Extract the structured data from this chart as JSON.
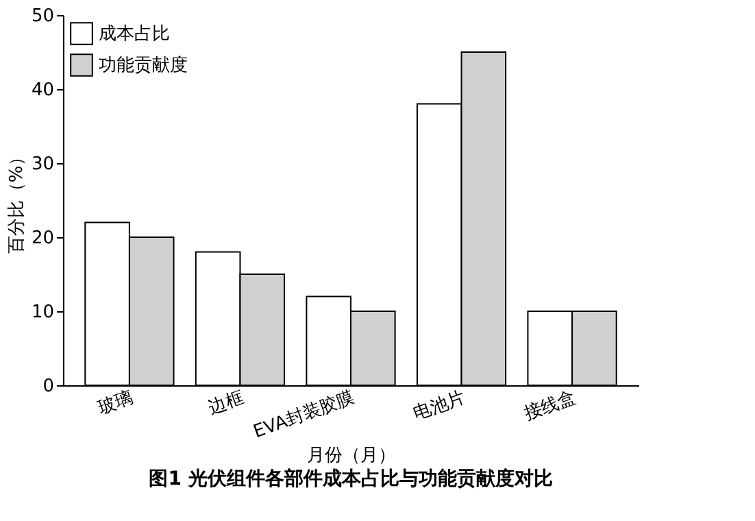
{
  "chart_data": {
    "type": "bar",
    "title": "图1  光伏组件各部件成本占比与功能贡献度对比",
    "xlabel": "月份（月）",
    "ylabel": "百分比（%）",
    "categories": [
      "玻璃",
      "边框",
      "EVA封装胶膜",
      "电池片",
      "接线盒"
    ],
    "series": [
      {
        "name": "成本占比",
        "color": "#ffffff",
        "values": [
          22,
          18,
          12,
          38,
          10
        ]
      },
      {
        "name": "功能贡献度",
        "color": "#d0d0d0",
        "values": [
          20,
          15,
          10,
          45,
          10
        ]
      }
    ],
    "ylim": [
      0,
      50
    ],
    "yticks": [
      0,
      10,
      20,
      30,
      40,
      50
    ],
    "grid": false,
    "legend": "top left"
  }
}
